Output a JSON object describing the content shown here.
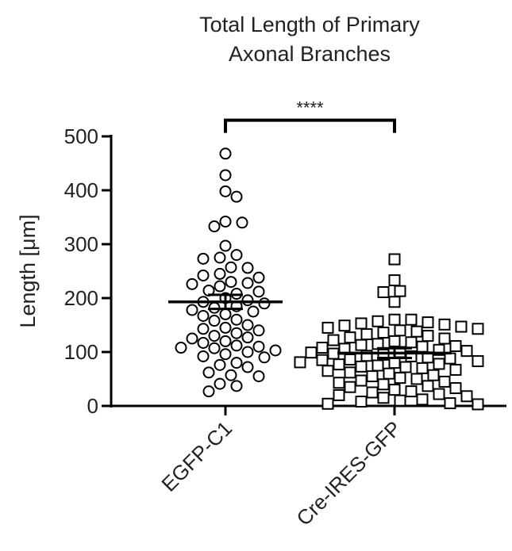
{
  "chart_data": {
    "type": "scatter",
    "title_lines": [
      "Total Length of Primary",
      "Axonal Branches"
    ],
    "ylabel": "Length [μm]",
    "xlabel": "",
    "ylim": [
      0,
      500
    ],
    "yticks": [
      0,
      100,
      200,
      300,
      400,
      500
    ],
    "ytick_labels": [
      "0",
      "100",
      "200",
      "300",
      "400",
      "500"
    ],
    "categories": [
      "EGFP-C1",
      "Cre-IRES-GFP"
    ],
    "grid": false,
    "legend": "none",
    "significance": {
      "label": "****",
      "between": [
        "EGFP-C1",
        "Cre-IRES-GFP"
      ],
      "y": 530
    },
    "series": [
      {
        "category": "EGFP-C1",
        "marker": "circle",
        "mean": 193,
        "sem_upper": 206,
        "sem_lower": 180,
        "values": [
          468,
          428,
          398,
          388,
          342,
          340,
          333,
          297,
          280,
          275,
          273,
          257,
          256,
          245,
          242,
          238,
          230,
          228,
          226,
          222,
          214,
          212,
          208,
          200,
          196,
          193,
          190,
          185,
          182,
          178,
          175,
          170,
          167,
          160,
          158,
          150,
          145,
          143,
          140,
          135,
          130,
          127,
          125,
          120,
          117,
          112,
          110,
          108,
          107,
          103,
          100,
          96,
          92,
          90,
          80,
          76,
          72,
          62,
          57,
          55,
          41,
          37,
          27
        ]
      },
      {
        "category": "Cre-IRES-GFP",
        "marker": "square",
        "mean": 98,
        "sem_upper": 107,
        "sem_lower": 89,
        "values": [
          272,
          233,
          213,
          211,
          193,
          160,
          160,
          157,
          155,
          153,
          151,
          149,
          147,
          145,
          143,
          140,
          138,
          136,
          133,
          130,
          127,
          125,
          122,
          120,
          118,
          115,
          113,
          111,
          110,
          108,
          106,
          104,
          102,
          100,
          99,
          97,
          95,
          93,
          92,
          90,
          88,
          86,
          85,
          83,
          81,
          80,
          78,
          77,
          75,
          73,
          72,
          70,
          67,
          65,
          62,
          60,
          57,
          55,
          52,
          50,
          47,
          45,
          43,
          40,
          37,
          35,
          33,
          30,
          27,
          25,
          22,
          20,
          18,
          15,
          12,
          10,
          8,
          5,
          4,
          3
        ]
      }
    ]
  }
}
